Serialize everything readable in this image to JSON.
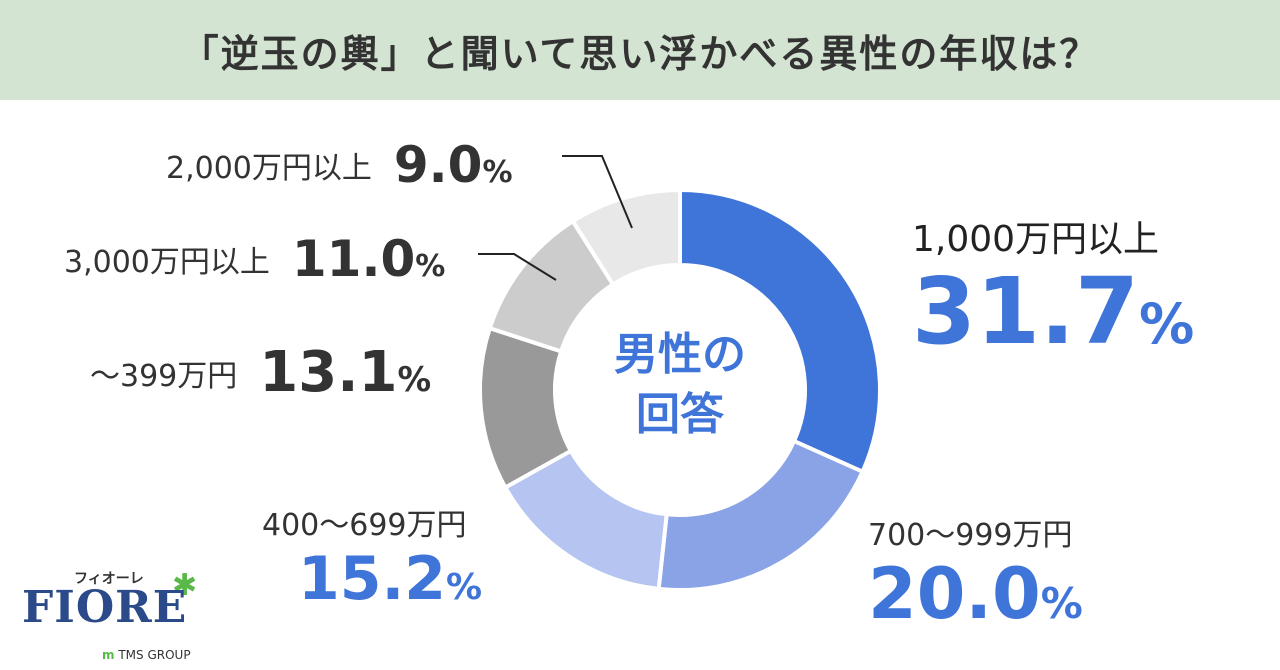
{
  "header": {
    "title": "「逆玉の輿」と聞いて思い浮かべる異性の年収は？"
  },
  "center_label": {
    "line1": "男性の",
    "line2": "回答"
  },
  "percent_symbol": "%",
  "logo": {
    "sub": "フィオーレ",
    "main": "FIORE",
    "group_mark": "m",
    "group_text": "TMS GROUP"
  },
  "colors": {
    "accent": "#3f74d8",
    "dark_text": "#333333",
    "header_bg": "#d4e4d2"
  },
  "chart_data": {
    "type": "pie",
    "donut": true,
    "title": "「逆玉の輿」と聞いて思い浮かべる異性の年収は？",
    "categories": [
      "1,000万円以上",
      "700〜999万円",
      "400〜699万円",
      "〜399万円",
      "3,000万円以上",
      "2,000万円以上"
    ],
    "values": [
      31.7,
      20.0,
      15.2,
      13.1,
      11.0,
      9.0
    ],
    "value_labels": [
      "31.7",
      "20.0",
      "15.2",
      "13.1",
      "11.0",
      "9.0"
    ],
    "colors": [
      "#3f74d8",
      "#8aa2e6",
      "#b5c4f0",
      "#999999",
      "#cccccc",
      "#e8e8e8"
    ]
  }
}
